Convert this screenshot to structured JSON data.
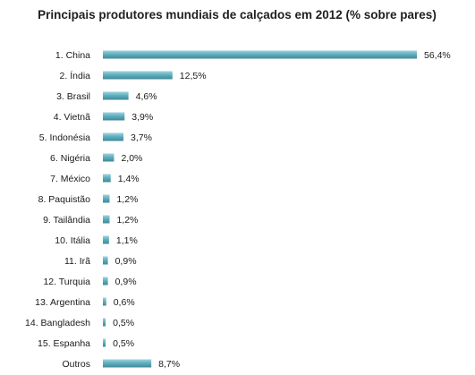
{
  "chart_data": {
    "type": "bar",
    "orientation": "horizontal",
    "title": "Principais produtores mundiais de calçados em 2012 (% sobre pares)",
    "xlabel": "",
    "ylabel": "",
    "xlim": [
      0,
      56.4
    ],
    "grid": false,
    "legend": "none",
    "bar_color": "#5aa9b9",
    "categories": [
      "1. China",
      "2. Índia",
      "3. Brasil",
      "4. Vietnã",
      "5. Indonésia",
      "6. Nigéria",
      "7. México",
      "8. Paquistão",
      "9. Tailândia",
      "10. Itália",
      "11. Irã",
      "12. Turquia",
      "13. Argentina",
      "14. Bangladesh",
      "15. Espanha",
      "Outros"
    ],
    "values": [
      56.4,
      12.5,
      4.6,
      3.9,
      3.7,
      2.0,
      1.4,
      1.2,
      1.2,
      1.1,
      0.9,
      0.9,
      0.6,
      0.5,
      0.5,
      8.7
    ],
    "value_labels": [
      "56,4%",
      "12,5%",
      "4,6%",
      "3,9%",
      "3,7%",
      "2,0%",
      "1,4%",
      "1,2%",
      "1,2%",
      "1,1%",
      "0,9%",
      "0,9%",
      "0,6%",
      "0,5%",
      "0,5%",
      "8,7%"
    ]
  }
}
